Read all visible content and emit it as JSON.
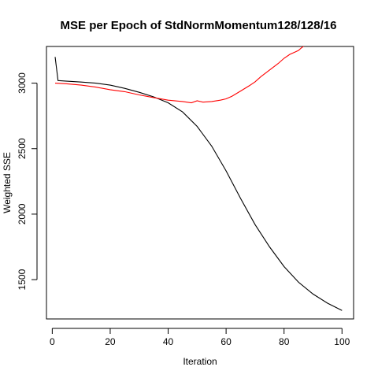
{
  "chart_data": {
    "type": "line",
    "title": "MSE per Epoch of StdNormMomentum128/128/16",
    "xlabel": "Iteration",
    "ylabel": "Weighted SSE",
    "xlim": [
      -2,
      104
    ],
    "ylim": [
      1200,
      3280
    ],
    "xticks": [
      0,
      20,
      40,
      60,
      80,
      100
    ],
    "yticks": [
      1500,
      2000,
      2500,
      3000
    ],
    "grid": false,
    "legend": "none",
    "series": [
      {
        "color": "#000000",
        "x": [
          1,
          2,
          5,
          10,
          15,
          20,
          25,
          30,
          35,
          40,
          45,
          50,
          55,
          60,
          65,
          70,
          75,
          80,
          85,
          90,
          95,
          100
        ],
        "y": [
          3200,
          3020,
          3015,
          3008,
          3000,
          2985,
          2960,
          2930,
          2895,
          2850,
          2780,
          2670,
          2520,
          2330,
          2120,
          1920,
          1750,
          1600,
          1480,
          1390,
          1320,
          1265
        ]
      },
      {
        "color": "#ff0000",
        "x": [
          1,
          5,
          10,
          15,
          20,
          25,
          30,
          35,
          40,
          45,
          48,
          50,
          52,
          55,
          58,
          60,
          62,
          65,
          68,
          70,
          72,
          75,
          78,
          80,
          82,
          84,
          85,
          86,
          87,
          88
        ],
        "y": [
          3000,
          2995,
          2985,
          2970,
          2950,
          2935,
          2910,
          2890,
          2870,
          2860,
          2850,
          2865,
          2855,
          2860,
          2870,
          2880,
          2900,
          2940,
          2980,
          3010,
          3050,
          3100,
          3150,
          3190,
          3220,
          3240,
          3250,
          3270,
          3285,
          3300
        ]
      }
    ]
  }
}
